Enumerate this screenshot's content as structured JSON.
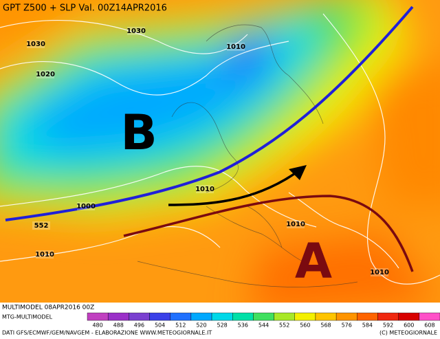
{
  "header": {
    "title": "GPT Z500 + SLP Val. 00Z14APR2016"
  },
  "map": {
    "pressure_labels": [
      {
        "text": "1030"
      },
      {
        "text": "1030"
      },
      {
        "text": "1020"
      },
      {
        "text": "1010"
      },
      {
        "text": "1010"
      },
      {
        "text": "1000"
      },
      {
        "text": "552"
      },
      {
        "text": "1010"
      },
      {
        "text": "1010"
      },
      {
        "text": "1010"
      }
    ],
    "low_label": "B",
    "high_label": "A"
  },
  "footer": {
    "run": "MULTIMODEL 08APR2016 00Z",
    "model": "MTG-MULTIMODEL",
    "credits": "DATI GFS/ECMWF/GEM/NAVGEM - ELABORAZIONE WWW.METEOGIORNALE.IT",
    "copyright": "(C) METEOGIORNALE"
  },
  "legend": {
    "ticks": [
      480,
      488,
      496,
      504,
      512,
      520,
      528,
      536,
      544,
      552,
      560,
      568,
      576,
      584,
      592,
      600,
      608
    ],
    "colors": [
      "#c040c0",
      "#9a30c8",
      "#7a40d0",
      "#3a40e8",
      "#2070ff",
      "#00a8ff",
      "#00d8e8",
      "#00e0a8",
      "#40e060",
      "#a8e828",
      "#f4f000",
      "#ffc400",
      "#ff9400",
      "#ff6400",
      "#f02810",
      "#d80000",
      "#ff50c8"
    ]
  }
}
